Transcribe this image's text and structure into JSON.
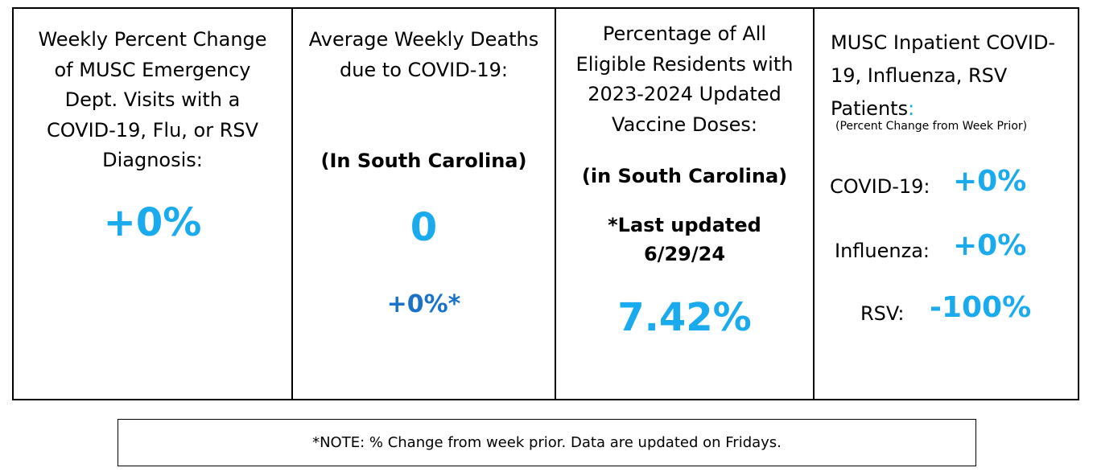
{
  "panels": {
    "ed_visits": {
      "heading_lines": [
        "Weekly Percent Change",
        "of MUSC Emergency",
        "Dept. Visits with a",
        "COVID-19, Flu, or RSV",
        "Diagnosis:"
      ],
      "value": "+0%"
    },
    "deaths": {
      "heading_lines": [
        "Average Weekly Deaths",
        "due to COVID-19:"
      ],
      "region": "(In South Carolina)",
      "value": "0",
      "change": "+0%*"
    },
    "vaccine": {
      "heading_lines": [
        "Percentage of All",
        "Eligible Residents with",
        "2023-2024 Updated",
        "Vaccine Doses:"
      ],
      "region": "(in South Carolina)",
      "updated_lines": [
        "*Last updated",
        "6/29/24"
      ],
      "value": "7.42%"
    },
    "inpatient": {
      "heading_lines": [
        "MUSC Inpatient COVID-",
        "19, Influenza, RSV",
        "Patients"
      ],
      "heading_colon": ":",
      "subheading": "(Percent Change from Week Prior)",
      "metrics": [
        {
          "label": "COVID-19:",
          "value": "+0%"
        },
        {
          "label": "Influenza:",
          "value": "+0%"
        },
        {
          "label": "RSV:",
          "value": "-100%"
        }
      ]
    }
  },
  "note": "*NOTE: % Change from week prior. Data are updated on Fridays.",
  "colors": {
    "accent": "#1aaaee",
    "secondary": "#1a73c9",
    "border": "#000000"
  }
}
